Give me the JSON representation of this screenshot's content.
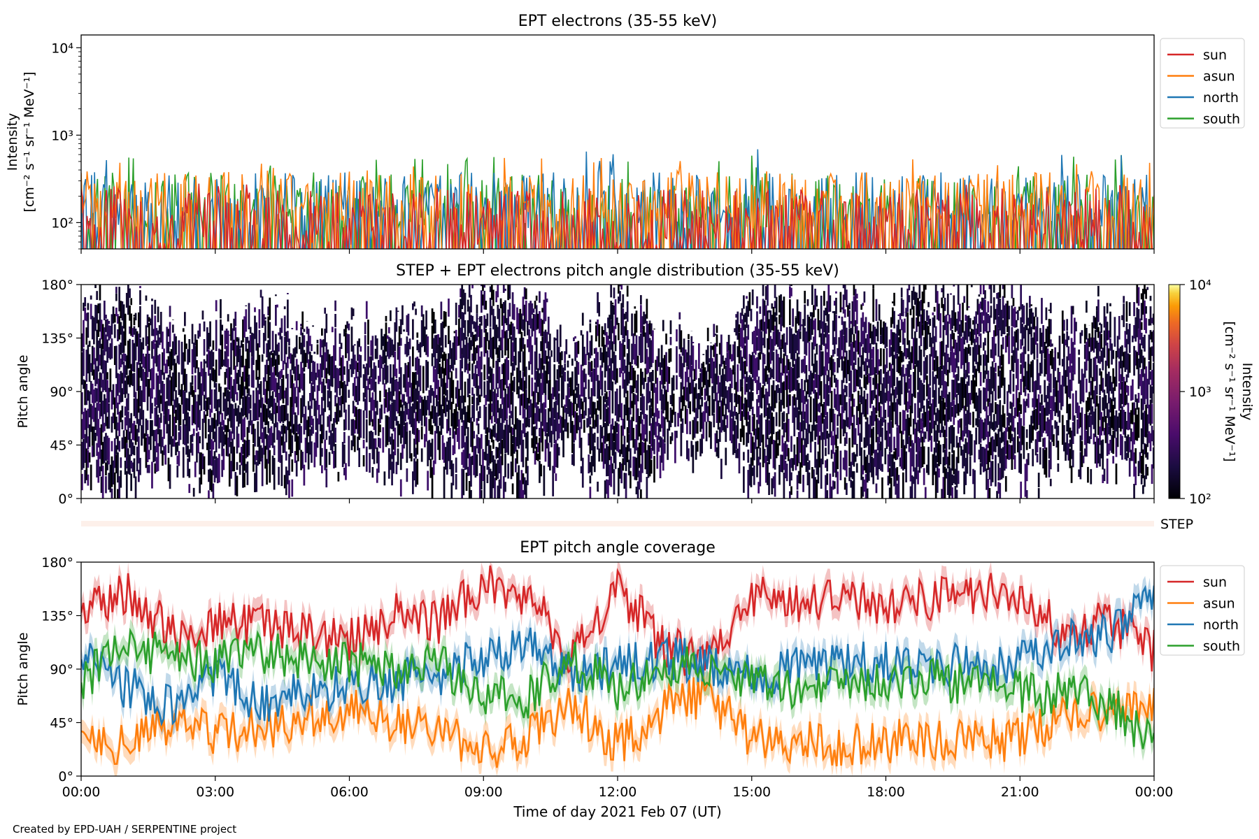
{
  "chart_data": [
    {
      "type": "line",
      "title": "EPT electrons (35-55 keV)",
      "ylabel_line1": "Intensity",
      "ylabel_line2": "[cm⁻² s⁻¹ sr⁻¹ MeV⁻¹]",
      "yscale": "log",
      "ylim": [
        50,
        14000
      ],
      "yticks": [
        {
          "v": 100,
          "label": "10²"
        },
        {
          "v": 1000,
          "label": "10³"
        },
        {
          "v": 10000,
          "label": "10⁴"
        }
      ],
      "xlim_hours": [
        0,
        24
      ],
      "legend": "top-right",
      "series": [
        {
          "name": "sun",
          "color": "#d62728",
          "baseline": 110,
          "spread": 0.22,
          "max": 300
        },
        {
          "name": "asun",
          "color": "#ff7f0e",
          "baseline": 200,
          "spread": 0.18,
          "max": 550
        },
        {
          "name": "north",
          "color": "#1f77b4",
          "baseline": 180,
          "spread": 0.2,
          "max": 700
        },
        {
          "name": "south",
          "color": "#2ca02c",
          "baseline": 180,
          "spread": 0.2,
          "max": 600
        }
      ]
    },
    {
      "type": "heatmap",
      "title": "STEP + EPT electrons pitch angle distribution (35-55 keV)",
      "ylabel": "Pitch angle",
      "ylim": [
        0,
        180
      ],
      "yticks": [
        {
          "v": 0,
          "label": "0°"
        },
        {
          "v": 45,
          "label": "45°"
        },
        {
          "v": 90,
          "label": "90°"
        },
        {
          "v": 135,
          "label": "135°"
        },
        {
          "v": 180,
          "label": "180°"
        }
      ],
      "colorbar": {
        "label_line1": "Intensity",
        "label_line2": "[cm⁻² s⁻¹ sr⁻¹ MeV⁻¹]",
        "scale": "log",
        "range": [
          100,
          10000
        ],
        "ticks": [
          {
            "v": 100,
            "label": "10²"
          },
          {
            "v": 1000,
            "label": "10³"
          },
          {
            "v": 10000,
            "label": "10⁴"
          }
        ],
        "colormap": "inferno"
      },
      "step_label": "STEP"
    },
    {
      "type": "line",
      "title": "EPT pitch angle coverage",
      "ylabel": "Pitch angle",
      "ylim": [
        0,
        180
      ],
      "yticks": [
        {
          "v": 0,
          "label": "0°"
        },
        {
          "v": 45,
          "label": "45°"
        },
        {
          "v": 90,
          "label": "90°"
        },
        {
          "v": 135,
          "label": "135°"
        },
        {
          "v": 180,
          "label": "180°"
        }
      ],
      "xlabel": "Time of day 2021 Feb 07 (UT)",
      "xlim_hours": [
        0,
        24
      ],
      "xticks": [
        {
          "v": 0,
          "label": "00:00"
        },
        {
          "v": 3,
          "label": "03:00"
        },
        {
          "v": 6,
          "label": "06:00"
        },
        {
          "v": 9,
          "label": "09:00"
        },
        {
          "v": 12,
          "label": "12:00"
        },
        {
          "v": 15,
          "label": "15:00"
        },
        {
          "v": 18,
          "label": "18:00"
        },
        {
          "v": 21,
          "label": "21:00"
        },
        {
          "v": 24,
          "label": "00:00"
        }
      ],
      "legend": "top-right",
      "series": [
        {
          "name": "sun",
          "color": "#d62728",
          "keypoints_hours": [
            0,
            1,
            2,
            3,
            4,
            5,
            6,
            7,
            8,
            9,
            10,
            11,
            12,
            13,
            14,
            15,
            16,
            17,
            18,
            19,
            20,
            21,
            22,
            23,
            24
          ],
          "keypoints_deg": [
            140,
            155,
            120,
            130,
            125,
            120,
            115,
            135,
            130,
            160,
            150,
            100,
            160,
            110,
            95,
            150,
            145,
            155,
            140,
            150,
            155,
            150,
            120,
            130,
            105
          ]
        },
        {
          "name": "asun",
          "color": "#ff7f0e",
          "keypoints_hours": [
            0,
            1,
            2,
            3,
            4,
            5,
            6,
            7,
            8,
            9,
            10,
            11,
            12,
            13,
            14,
            15,
            16,
            17,
            18,
            19,
            20,
            21,
            22,
            23,
            24
          ],
          "keypoints_deg": [
            40,
            25,
            45,
            35,
            40,
            50,
            55,
            45,
            40,
            20,
            35,
            60,
            25,
            55,
            70,
            30,
            30,
            25,
            30,
            30,
            30,
            30,
            50,
            55,
            60
          ]
        },
        {
          "name": "north",
          "color": "#1f77b4",
          "keypoints_hours": [
            0,
            1,
            2,
            3,
            4,
            5,
            6,
            7,
            8,
            9,
            10,
            11,
            12,
            13,
            14,
            15,
            16,
            17,
            18,
            19,
            20,
            21,
            22,
            23,
            24
          ],
          "keypoints_deg": [
            100,
            75,
            60,
            85,
            60,
            70,
            75,
            80,
            85,
            100,
            110,
            80,
            95,
            100,
            95,
            85,
            90,
            95,
            95,
            95,
            95,
            95,
            115,
            120,
            150
          ]
        },
        {
          "name": "south",
          "color": "#2ca02c",
          "keypoints_hours": [
            0,
            1,
            2,
            3,
            4,
            5,
            6,
            7,
            8,
            9,
            10,
            11,
            12,
            13,
            14,
            15,
            16,
            17,
            18,
            19,
            20,
            21,
            22,
            23,
            24
          ],
          "keypoints_deg": [
            80,
            110,
            100,
            95,
            105,
            100,
            95,
            90,
            95,
            70,
            65,
            100,
            70,
            90,
            95,
            80,
            75,
            80,
            80,
            80,
            80,
            70,
            70,
            60,
            30
          ]
        }
      ]
    }
  ],
  "footer": "Created by EPD-UAH / SERPENTINE project"
}
